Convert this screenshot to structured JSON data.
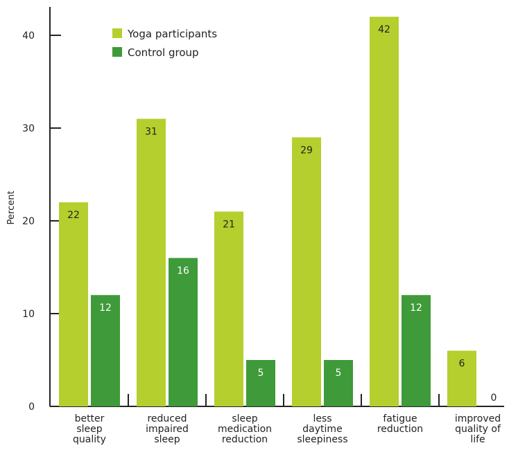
{
  "chart_data": {
    "type": "bar",
    "ylabel": "Percent",
    "xlabel": "",
    "ylim": [
      0,
      45
    ],
    "yticks": [
      0,
      10,
      20,
      30,
      40
    ],
    "categories": [
      [
        "better",
        "sleep",
        "quality"
      ],
      [
        "reduced",
        "impaired",
        "sleep"
      ],
      [
        "sleep",
        "medication",
        "reduction"
      ],
      [
        "less",
        "daytime",
        "sleepiness"
      ],
      [
        "fatigue",
        "reduction"
      ],
      [
        "improved",
        "quality of",
        "life"
      ]
    ],
    "series": [
      {
        "name": "Yoga participants",
        "color": "#b5cf2e",
        "values": [
          22,
          31,
          21,
          29,
          42,
          6
        ]
      },
      {
        "name": "Control group",
        "color": "#3f9a3a",
        "values": [
          12,
          16,
          5,
          5,
          12,
          0
        ]
      }
    ],
    "legend_position": "top-left",
    "grid": false
  }
}
